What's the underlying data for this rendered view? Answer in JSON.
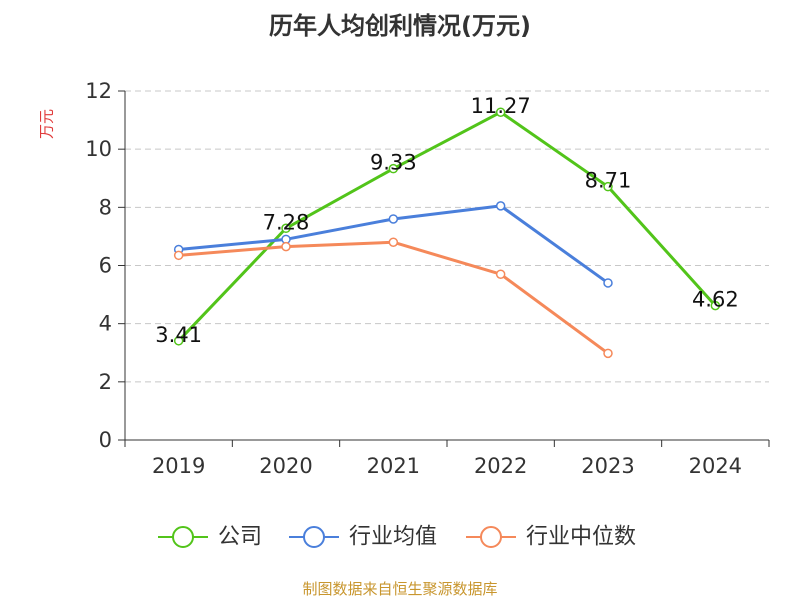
{
  "chart_data": {
    "type": "line",
    "title": "历年人均创利情况(万元)",
    "ylabel": "万元",
    "xlabel": "",
    "categories": [
      "2019",
      "2020",
      "2021",
      "2022",
      "2023",
      "2024"
    ],
    "ylim": [
      0,
      12
    ],
    "yticks": [
      0,
      2,
      4,
      6,
      8,
      10,
      12
    ],
    "grid": true,
    "legend_position": "bottom",
    "series": [
      {
        "name": "公司",
        "color": "#52c41a",
        "values": [
          3.41,
          7.28,
          9.33,
          11.27,
          8.71,
          4.62
        ],
        "labels": [
          "3.41",
          "7.28",
          "9.33",
          "11.27",
          "8.71",
          "4.62"
        ]
      },
      {
        "name": "行业均值",
        "color": "#4a7fdb",
        "values": [
          6.55,
          6.9,
          7.6,
          8.05,
          5.4,
          null
        ]
      },
      {
        "name": "行业中位数",
        "color": "#f5895a",
        "values": [
          6.35,
          6.65,
          6.8,
          5.7,
          2.98,
          null
        ]
      }
    ]
  },
  "footer": {
    "source": "制图数据来自恒生聚源数据库"
  }
}
